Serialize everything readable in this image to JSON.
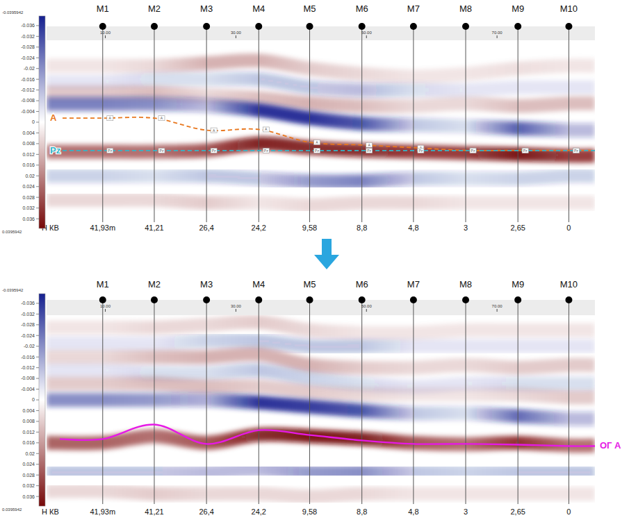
{
  "chart_data": {
    "type": "seismic_section",
    "xlim": [
      1,
      85
    ],
    "xticks": [
      {
        "value": 10,
        "label": "10.00"
      },
      {
        "value": 30,
        "label": "30.00"
      },
      {
        "value": 50,
        "label": "50.00"
      },
      {
        "value": 70,
        "label": "70.00"
      }
    ],
    "ylim": [
      -0.0395942,
      0.0395942
    ],
    "yticks": [
      -0.036,
      -0.032,
      -0.028,
      -0.024,
      -0.02,
      -0.016,
      -0.012,
      -0.008,
      -0.004,
      0,
      0.004,
      0.008,
      0.012,
      0.016,
      0.02,
      0.024,
      0.028,
      0.032,
      0.036
    ],
    "h_kb_title": "Н КВ",
    "wells": [
      {
        "name": "M1",
        "x": 9.6,
        "h_kb": {
          "value": 41.93,
          "label": "41,93m"
        }
      },
      {
        "name": "M2",
        "x": 17.5,
        "h_kb": {
          "value": 41.21,
          "label": "41,21"
        }
      },
      {
        "name": "M3",
        "x": 25.5,
        "h_kb": {
          "value": 26.4,
          "label": "26,4"
        }
      },
      {
        "name": "M4",
        "x": 33.5,
        "h_kb": {
          "value": 24.2,
          "label": "24,2"
        }
      },
      {
        "name": "M5",
        "x": 41.3,
        "h_kb": {
          "value": 9.58,
          "label": "9,58"
        }
      },
      {
        "name": "M6",
        "x": 49.3,
        "h_kb": {
          "value": 8.8,
          "label": "8,8"
        }
      },
      {
        "name": "M7",
        "x": 57.2,
        "h_kb": {
          "value": 4.8,
          "label": "4,8"
        }
      },
      {
        "name": "M8",
        "x": 65.2,
        "h_kb": 3
      },
      {
        "name": "M9",
        "x": 73.2,
        "h_kb": {
          "value": 2.65,
          "label": "2,65"
        }
      },
      {
        "name": "M10",
        "x": 81.0,
        "h_kb": 0
      }
    ],
    "panels": [
      {
        "bands": [
          {
            "values": [
              -0.021,
              -0.021,
              -0.022,
              -0.023,
              -0.02,
              -0.018,
              -0.017,
              -0.018,
              -0.02,
              -0.021
            ],
            "amplitudes": [
              0.004,
              0.006,
              0.012,
              0.012,
              0.008,
              0.006,
              0.004,
              0.004,
              0.005,
              0.004
            ]
          },
          {
            "values": [
              -0.015,
              -0.016,
              -0.016,
              -0.016,
              -0.013,
              -0.012,
              -0.012,
              -0.012,
              -0.013,
              -0.013
            ],
            "amplitudes": [
              -0.004,
              -0.006,
              -0.006,
              -0.01,
              -0.01,
              -0.012,
              -0.006,
              -0.004,
              -0.004,
              -0.004
            ]
          },
          {
            "values": [
              -0.011,
              -0.011,
              -0.01,
              -0.009,
              -0.007,
              -0.006,
              -0.006,
              -0.007,
              -0.006,
              -0.007
            ],
            "amplitudes": [
              0.008,
              0.01,
              0.006,
              0.01,
              0.012,
              0.01,
              0.006,
              0.006,
              0.01,
              0.01
            ]
          },
          {
            "values": [
              -0.0068,
              -0.0068,
              -0.0062,
              -0.0045,
              -0.0015,
              0.0005,
              0.001,
              0.0015,
              0.0023,
              0.003
            ],
            "amplitudes": [
              -0.022,
              -0.02,
              -0.012,
              -0.036,
              -0.036,
              -0.03,
              -0.01,
              -0.006,
              -0.028,
              -0.012
            ]
          },
          {
            "values": [
              0.011,
              0.011,
              0.0105,
              0.008,
              0.0095,
              0.0105,
              0.011,
              0.0115,
              0.012,
              0.0125
            ],
            "amplitudes": [
              0.022,
              0.022,
              0.026,
              0.036,
              0.034,
              0.034,
              0.03,
              0.03,
              0.038,
              0.03
            ]
          },
          {
            "values": [
              0.02,
              0.02,
              0.02,
              0.021,
              0.022,
              0.022,
              0.021,
              0.021,
              0.021,
              0.02
            ],
            "amplitudes": [
              -0.008,
              -0.006,
              -0.01,
              -0.01,
              -0.018,
              -0.022,
              -0.01,
              -0.006,
              -0.008,
              -0.008
            ]
          },
          {
            "values": [
              0.029,
              0.029,
              0.03,
              0.03,
              0.031,
              0.03,
              0.03,
              0.03,
              0.03,
              0.03
            ],
            "amplitudes": [
              0.006,
              0.006,
              0.008,
              0.004,
              0.006,
              0.006,
              0.006,
              0.004,
              0.004,
              0.004
            ]
          }
        ],
        "horizons": [
          {
            "name": "A",
            "color": "#e8771e",
            "line_style": "dashed",
            "values": [
              -0.0015,
              -0.0015,
              0.003,
              0.0027,
              0.0075,
              0.0085,
              0.0095,
              0.0105,
              0.0105,
              0.0105
            ]
          },
          {
            "name": "Pz",
            "color": "#33b5c8",
            "line_style": "dashed",
            "values": [
              0.0106,
              0.0106,
              0.0106,
              0.0106,
              0.0106,
              0.0106,
              0.0106,
              0.0106,
              0.0106,
              0.0106
            ]
          }
        ]
      },
      {
        "bands": [
          {
            "values": [
              -0.027,
              -0.027,
              -0.028,
              -0.029,
              -0.026,
              -0.025,
              -0.025,
              -0.026,
              -0.026,
              -0.026
            ],
            "amplitudes": [
              0.004,
              0.006,
              0.006,
              0.008,
              0.006,
              0.004,
              0.004,
              0.004,
              0.004,
              0.004
            ]
          },
          {
            "values": [
              -0.021,
              -0.021,
              -0.022,
              -0.022,
              -0.02,
              -0.02,
              -0.02,
              -0.02,
              -0.02,
              -0.02
            ],
            "amplitudes": [
              -0.004,
              -0.004,
              -0.008,
              -0.01,
              -0.01,
              -0.01,
              -0.004,
              -0.004,
              -0.004,
              -0.004
            ]
          },
          {
            "values": [
              -0.016,
              -0.016,
              -0.016,
              -0.017,
              -0.013,
              -0.012,
              -0.012,
              -0.013,
              -0.012,
              -0.013
            ],
            "amplitudes": [
              0.006,
              0.01,
              0.012,
              0.012,
              0.012,
              0.008,
              0.006,
              0.006,
              0.008,
              0.008
            ]
          },
          {
            "values": [
              -0.011,
              -0.01,
              -0.01,
              -0.011,
              -0.008,
              -0.006,
              -0.005,
              -0.006,
              -0.006,
              -0.006
            ],
            "amplitudes": [
              -0.004,
              -0.006,
              -0.006,
              -0.01,
              -0.008,
              -0.006,
              -0.004,
              -0.004,
              -0.006,
              -0.006
            ]
          },
          {
            "values": [
              -0.006,
              -0.006,
              -0.005,
              -0.005,
              -0.003,
              -0.002,
              -0.002,
              -0.002,
              -0.002,
              -0.001
            ],
            "amplitudes": [
              0.008,
              0.01,
              0.01,
              0.008,
              0.008,
              0.006,
              0.004,
              0.004,
              0.006,
              0.008
            ]
          },
          {
            "values": [
              0,
              0,
              0,
              0.001,
              0.0025,
              0.004,
              0.005,
              0.005,
              0.006,
              0.007
            ],
            "amplitudes": [
              -0.02,
              -0.018,
              -0.014,
              -0.036,
              -0.034,
              -0.03,
              -0.01,
              -0.006,
              -0.026,
              -0.012
            ]
          },
          {
            "values": [
              0.016,
              0.0135,
              0.016,
              0.013,
              0.0135,
              0.0145,
              0.016,
              0.0165,
              0.016,
              0.017
            ],
            "amplitudes": [
              0.024,
              0.022,
              0.026,
              0.034,
              0.038,
              0.036,
              0.026,
              0.022,
              0.032,
              0.022
            ]
          },
          {
            "values": [
              0.027,
              0.027,
              0.027,
              0.026,
              0.027,
              0.027,
              0.027,
              0.027,
              0.027,
              0.027
            ],
            "amplitudes": [
              -0.01,
              -0.01,
              -0.012,
              -0.012,
              -0.018,
              -0.02,
              -0.01,
              -0.008,
              -0.01,
              -0.01
            ]
          },
          {
            "values": [
              0.034,
              0.035,
              0.035,
              0.035,
              0.036,
              0.035,
              0.035,
              0.035,
              0.035,
              0.035
            ],
            "amplitudes": [
              0.006,
              0.008,
              0.006,
              0.006,
              0.006,
              0.006,
              0.004,
              0.004,
              0.004,
              0.004
            ]
          }
        ],
        "horizons": [
          {
            "name": "ОГ А",
            "color": "#e619e6",
            "line_style": "solid",
            "values": [
              0.0146,
              0.0092,
              0.0164,
              0.0113,
              0.0131,
              0.0151,
              0.0164,
              0.0164,
              0.0167,
              0.0172
            ]
          }
        ]
      }
    ]
  }
}
